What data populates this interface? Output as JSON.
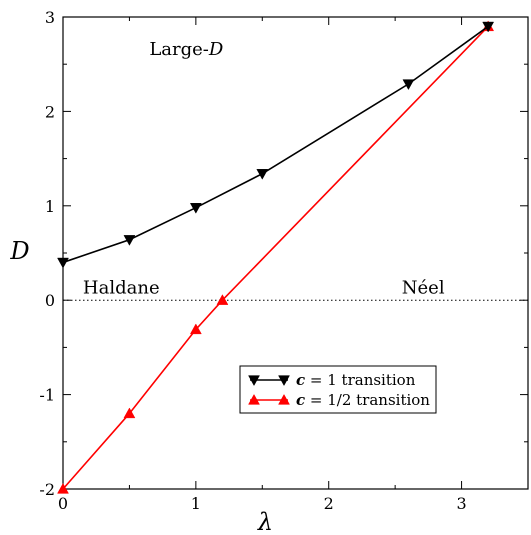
{
  "chart_data": {
    "type": "line",
    "title": "",
    "xlabel": "λ",
    "ylabel": "D",
    "xlim": [
      0,
      3.5
    ],
    "ylim": [
      -2,
      3
    ],
    "x_ticks": [
      0,
      1,
      2,
      3
    ],
    "x_tick_labels": [
      "0",
      "1",
      "2",
      "3"
    ],
    "y_ticks": [
      -2,
      -1,
      0,
      1,
      2,
      3
    ],
    "y_tick_labels": [
      "-2",
      "-1",
      "0",
      "1",
      "2",
      "3"
    ],
    "grid": false,
    "reference_line": {
      "y": 0,
      "style": "dotted"
    },
    "legend_position": "lower-right",
    "series": [
      {
        "name": "c = 1 transition",
        "legend_italic_part": "c",
        "legend_rest": " = 1 transition",
        "color": "#000000",
        "marker": "down-triangle",
        "x": [
          0,
          0.5,
          1.0,
          1.5,
          2.6,
          3.2
        ],
        "y": [
          0.4,
          0.64,
          0.98,
          1.34,
          2.29,
          2.9
        ]
      },
      {
        "name": "c = 1/2 transition",
        "legend_italic_part": "c",
        "legend_rest": " = 1/2 transition",
        "color": "#ff0000",
        "marker": "up-triangle",
        "x": [
          0,
          0.5,
          1.0,
          1.2,
          3.2
        ],
        "y": [
          -2.0,
          -1.2,
          -0.31,
          0.0,
          2.9
        ]
      }
    ],
    "annotations": [
      {
        "text": "Large-",
        "italic_suffix": "D",
        "x": 0.65,
        "y": 2.6
      },
      {
        "text": "Haldane",
        "italic_suffix": "",
        "x": 0.15,
        "y": 0.07
      },
      {
        "text": "Néel",
        "italic_suffix": "",
        "x": 2.55,
        "y": 0.07
      }
    ]
  }
}
